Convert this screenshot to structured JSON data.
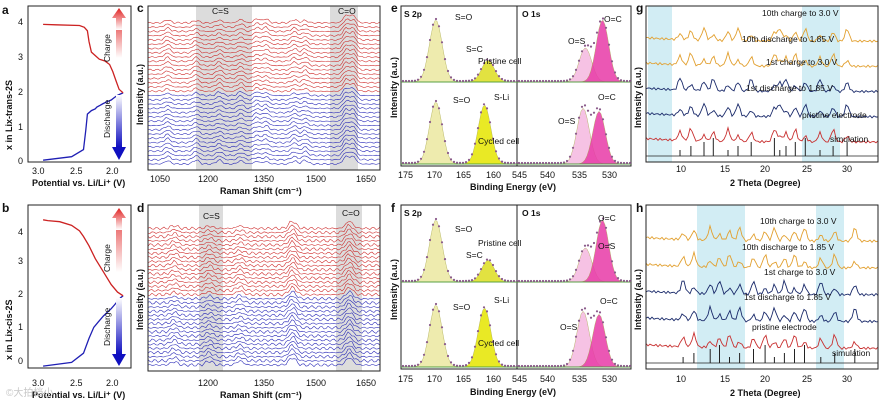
{
  "figure": {
    "watermark": "©大拍档小",
    "panels": [
      {
        "id": "a",
        "label": "a",
        "xlabel": "Potential vs. Li/Li⁺ (V)",
        "ylabel": "x in Lix-trans-2S",
        "xticks": [
          "3.0",
          "2.5",
          "2.0"
        ],
        "yticks": [
          "0",
          "1",
          "2",
          "3",
          "4"
        ],
        "charge_label": "Charge",
        "discharge_label": "Discharge"
      },
      {
        "id": "b",
        "label": "b",
        "xlabel": "Potential vs. Li/Li⁺ (V)",
        "ylabel": "x in Lix-cis-2S",
        "xticks": [
          "3.0",
          "2.5",
          "2.0"
        ],
        "yticks": [
          "0",
          "1",
          "2",
          "3",
          "4"
        ],
        "charge_label": "Charge",
        "discharge_label": "Discharge"
      },
      {
        "id": "c",
        "label": "c",
        "xlabel": "Raman Shift (cm⁻¹)",
        "ylabel": "Intensity (a.u.)",
        "xticks": [
          "1050",
          "1200",
          "1350",
          "1500",
          "1650"
        ],
        "bands": [
          "C=S",
          "C=O"
        ]
      },
      {
        "id": "d",
        "label": "d",
        "xlabel": "Raman Shift (cm⁻¹)",
        "ylabel": "Intensity (a.u.)",
        "xticks": [
          "1200",
          "1350",
          "1500",
          "1650"
        ],
        "bands": [
          "C=S",
          "C=O"
        ]
      },
      {
        "id": "e",
        "label": "e",
        "xlabel": "Binding Energy (eV)",
        "ylabel": "Intensity (a.u.)",
        "xticks": [
          "175",
          "170",
          "165",
          "160",
          "545",
          "540",
          "535",
          "530"
        ],
        "subtitles": [
          "S 2p",
          "O 1s"
        ],
        "cells": [
          "Pristine cell",
          "Cycled cell"
        ],
        "peaks": [
          "S=O",
          "S=C",
          "S=O",
          "S-Li",
          "O=S",
          "O=C",
          "O=S",
          "O=C"
        ]
      },
      {
        "id": "f",
        "label": "f",
        "xlabel": "Binding Energy (eV)",
        "ylabel": "Intensity (a.u.)",
        "xticks": [
          "175",
          "170",
          "165",
          "160",
          "545",
          "540",
          "535",
          "530"
        ],
        "subtitles": [
          "S 2p",
          "O 1s"
        ],
        "cells": [
          "Pristine cell",
          "Cycled cell"
        ],
        "peaks": [
          "S=O",
          "S=C",
          "S=O",
          "S-Li",
          "O=C",
          "O=S",
          "O=S",
          "O=C"
        ]
      },
      {
        "id": "g",
        "label": "g",
        "xlabel": "2 Theta (Degree)",
        "ylabel": "Intensity (a.u.)",
        "xticks": [
          "10",
          "15",
          "20",
          "25",
          "30"
        ],
        "traces": [
          "10th charge to 3.0 V",
          "10th discharge to 1.85 V",
          "1st charge to 3.0 V",
          "1st discharge to 1.85 V",
          "pristine electrode",
          "simulation"
        ]
      },
      {
        "id": "h",
        "label": "h",
        "xlabel": "2 Theta (Degree)",
        "ylabel": "Intensity (a.u.)",
        "xticks": [
          "10",
          "15",
          "20",
          "25",
          "30"
        ],
        "traces": [
          "10th charge to 3.0 V",
          "10th discharge to 1.85 V",
          "1st charge to 3.0 V",
          "1st discharge to 1.85 V",
          "pristine electrode",
          "simulation"
        ]
      }
    ]
  },
  "chart_data": [
    {
      "type": "line",
      "panel": "a",
      "title": "",
      "xlabel": "Potential vs. Li/Li⁺ (V)",
      "ylabel": "x in Lix-trans-2S",
      "xlim": [
        3.15,
        1.85
      ],
      "ylim": [
        0,
        4.4
      ],
      "series": [
        {
          "name": "Discharge",
          "color": "#1f1fb4",
          "x": [
            2.96,
            2.6,
            2.45,
            2.42,
            2.4,
            2.35,
            2.3,
            2.28,
            2.24,
            2.2,
            2.15,
            2.1,
            2.06,
            2.02,
            1.98,
            1.95
          ],
          "y": [
            0.05,
            0.15,
            0.35,
            0.9,
            1.35,
            1.45,
            1.5,
            1.55,
            1.6,
            1.65,
            1.7,
            1.75,
            1.82,
            1.88,
            1.92,
            1.95
          ]
        },
        {
          "name": "Charge",
          "color": "#cc2222",
          "x": [
            1.95,
            2.0,
            2.04,
            2.08,
            2.12,
            2.18,
            2.25,
            2.3,
            2.35,
            2.38,
            2.4,
            2.44,
            2.5,
            2.8,
            2.96
          ],
          "y": [
            1.95,
            2.05,
            2.3,
            2.55,
            2.75,
            2.85,
            2.9,
            3.0,
            3.1,
            3.4,
            3.7,
            3.8,
            3.85,
            3.87,
            3.88
          ]
        }
      ]
    },
    {
      "type": "line",
      "panel": "b",
      "title": "",
      "xlabel": "Potential vs. Li/Li⁺ (V)",
      "ylabel": "x in Lix-cis-2S",
      "xlim": [
        3.15,
        1.85
      ],
      "ylim": [
        0,
        4.4
      ],
      "series": [
        {
          "name": "Discharge",
          "color": "#1f1fb4",
          "x": [
            2.96,
            2.6,
            2.45,
            2.38,
            2.32,
            2.26,
            2.2,
            2.15,
            2.1,
            2.06,
            2.02,
            1.98,
            1.95
          ],
          "y": [
            0.05,
            0.15,
            0.4,
            0.8,
            1.1,
            1.25,
            1.4,
            1.5,
            1.6,
            1.7,
            1.8,
            1.9,
            1.95
          ]
        },
        {
          "name": "Charge",
          "color": "#cc2222",
          "x": [
            1.95,
            2.02,
            2.1,
            2.2,
            2.3,
            2.38,
            2.45,
            2.5,
            2.6,
            2.75,
            2.9,
            2.96
          ],
          "y": [
            1.95,
            2.05,
            2.25,
            2.6,
            2.95,
            3.3,
            3.55,
            3.7,
            3.85,
            3.95,
            3.98,
            4.0
          ]
        }
      ]
    },
    {
      "type": "line",
      "panel": "c",
      "title": "",
      "xlabel": "Raman Shift (cm⁻¹)",
      "ylabel": "Intensity (a.u.)",
      "xlim": [
        1030,
        1680
      ],
      "peaks_cm": [
        1085,
        1165,
        1230,
        1290,
        1335,
        1360,
        1440,
        1470,
        1585,
        1605
      ],
      "bands": [
        {
          "name": "C=S",
          "range": [
            1200,
            1250
          ]
        },
        {
          "name": "C=O",
          "range": [
            1580,
            1620
          ]
        }
      ],
      "series": [
        {
          "name": "Discharge",
          "color": "#1f1fb4",
          "count": 17
        },
        {
          "name": "Charge",
          "color": "#cc2222",
          "count": 17
        }
      ]
    },
    {
      "type": "line",
      "panel": "d",
      "title": "",
      "xlabel": "Raman Shift (cm⁻¹)",
      "ylabel": "Intensity (a.u.)",
      "xlim": [
        1150,
        1680
      ],
      "peaks_cm": [
        1210,
        1290,
        1360,
        1480,
        1610
      ],
      "bands": [
        {
          "name": "C=S",
          "range": [
            1195,
            1240
          ]
        },
        {
          "name": "C=O",
          "range": [
            1575,
            1620
          ]
        }
      ],
      "series": [
        {
          "name": "Discharge",
          "color": "#1f1fb4",
          "count": 17
        },
        {
          "name": "Charge",
          "color": "#cc2222",
          "count": 17
        }
      ]
    },
    {
      "type": "line",
      "panel": "e",
      "title": "S 2p / O 1s",
      "xlabel": "Binding Energy (eV)",
      "ylabel": "Intensity (a.u.)",
      "s2p_pristine_eV": {
        "S=O": 169.5,
        "S=C": 162.5
      },
      "s2p_cycled_eV": {
        "S=O": 169.5,
        "S-Li": 161.8
      },
      "o1s_pristine_eV": {
        "O=S": 533.0,
        "O=C": 531.3
      },
      "o1s_cycled_eV": {
        "O=S": 533.0,
        "O=C": 531.4
      }
    },
    {
      "type": "line",
      "panel": "f",
      "title": "S 2p / O 1s",
      "xlabel": "Binding Energy (eV)",
      "ylabel": "Intensity (a.u.)",
      "s2p_pristine_eV": {
        "S=O": 169.5,
        "S=C": 162.5
      },
      "s2p_cycled_eV": {
        "S=O": 169.5,
        "S-Li": 161.8
      },
      "o1s_pristine_eV": {
        "O=C": 531.3,
        "O=S": 533.0
      },
      "o1s_cycled_eV": {
        "O=S": 533.0,
        "O=C": 531.4
      }
    },
    {
      "type": "line",
      "panel": "g",
      "title": "",
      "xlabel": "2 Theta (Degree)",
      "ylabel": "Intensity (a.u.)",
      "xlim": [
        5,
        35
      ],
      "highlight_ranges": [
        [
          6,
          9
        ],
        [
          21.5,
          24.5
        ]
      ],
      "sim_peaks_2theta": [
        9.4,
        10.8,
        12.5,
        13.7,
        15.6,
        16.9,
        18.6,
        21.6,
        22.3,
        23.1,
        24.3,
        25.6,
        27.5,
        29.2,
        31.0
      ]
    },
    {
      "type": "line",
      "panel": "h",
      "title": "",
      "xlabel": "2 Theta (Degree)",
      "ylabel": "Intensity (a.u.)",
      "xlim": [
        5,
        35
      ],
      "highlight_ranges": [
        [
          12,
          18
        ],
        [
          30.5,
          33
        ]
      ],
      "sim_peaks_2theta": [
        9.8,
        11.2,
        13.3,
        14.5,
        15.8,
        17.1,
        18.9,
        20.4,
        21.6,
        22.9,
        24.2,
        25.5,
        27.6,
        29.4,
        32.0
      ]
    }
  ]
}
